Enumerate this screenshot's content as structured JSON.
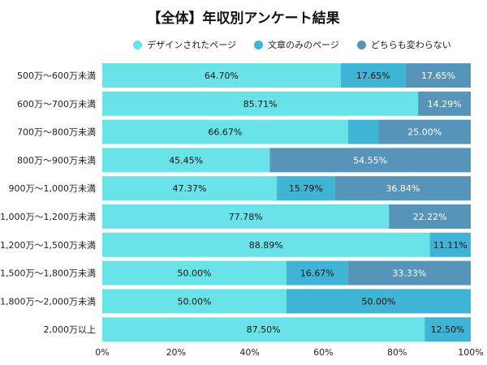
{
  "chart_data": {
    "type": "bar",
    "orientation": "horizontal",
    "stacked": true,
    "title": "【全体】年収別アンケート結果",
    "categories": [
      "500万〜600万未満",
      "600万〜700万未満",
      "700万〜800万未満",
      "800万〜900万未満",
      "900万〜1,000万未満",
      "1,000万〜1,200万未満",
      "1,200万〜1,500万未満",
      "1,500万〜1,800万未満",
      "1,800万〜2,000万未満",
      "2,000万以上"
    ],
    "series": [
      {
        "name": "デザインされたページ",
        "color": "#6ae3e8",
        "text_color": "#111111",
        "values": [
          64.7,
          85.71,
          66.67,
          45.45,
          47.37,
          77.78,
          88.89,
          50.0,
          50.0,
          87.5
        ],
        "labels": [
          "64.70%",
          "85.71%",
          "66.67%",
          "45.45%",
          "47.37%",
          "77.78%",
          "88.89%",
          "50.00%",
          "50.00%",
          "87.50%"
        ]
      },
      {
        "name": "文章のみのページ",
        "color": "#3fb4d4",
        "text_color": "#111111",
        "values": [
          17.65,
          0,
          8.33,
          0,
          15.79,
          0,
          11.11,
          16.67,
          50.0,
          12.5
        ],
        "labels": [
          "17.65%",
          "",
          "",
          "",
          "15.79%",
          "",
          "11.11%",
          "16.67%",
          "50.00%",
          "12.50%"
        ]
      },
      {
        "name": "どちらも変わらない",
        "color": "#5694ba",
        "text_color": "#ffffff",
        "values": [
          17.65,
          14.29,
          25.0,
          54.55,
          36.84,
          22.22,
          0,
          33.33,
          0,
          0
        ],
        "labels": [
          "17.65%",
          "14.29%",
          "25.00%",
          "54.55%",
          "36.84%",
          "22.22%",
          "",
          "33.33%",
          "",
          ""
        ]
      }
    ],
    "xlim": [
      0,
      100
    ],
    "xticks": [
      "0%",
      "20%",
      "40%",
      "60%",
      "80%",
      "100%"
    ],
    "grid": false,
    "legend": "top"
  }
}
